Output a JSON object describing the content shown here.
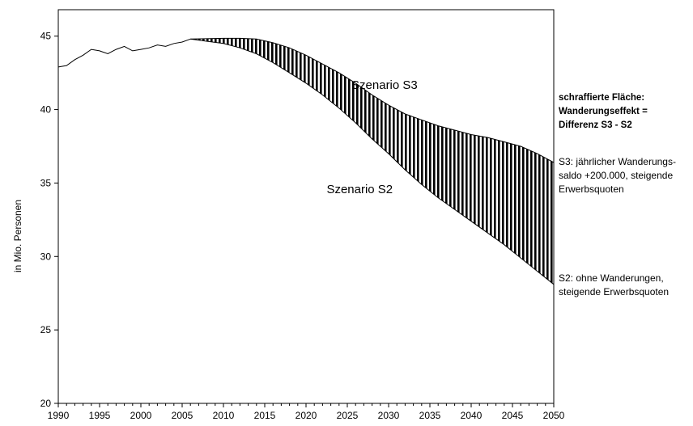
{
  "chart_data": {
    "type": "area",
    "xlabel": "",
    "ylabel": "in Mio. Personen",
    "xlim": [
      1990,
      2050
    ],
    "ylim": [
      20,
      46.8
    ],
    "x_ticks": [
      1990,
      1995,
      2000,
      2005,
      2010,
      2015,
      2020,
      2025,
      2030,
      2035,
      2040,
      2045,
      2050
    ],
    "y_ticks": [
      20,
      25,
      30,
      35,
      40,
      45
    ],
    "grid": false,
    "history": {
      "x": [
        1990,
        1991,
        1992,
        1993,
        1994,
        1995,
        1996,
        1997,
        1998,
        1999,
        2000,
        2001,
        2002,
        2003,
        2004,
        2005,
        2006
      ],
      "y": [
        42.9,
        43.0,
        43.4,
        43.7,
        44.1,
        44.0,
        43.8,
        44.1,
        44.3,
        44.0,
        44.1,
        44.2,
        44.4,
        44.3,
        44.5,
        44.6,
        44.8
      ]
    },
    "series": [
      {
        "name": "Szenario S3",
        "x": [
          2006,
          2010,
          2012,
          2014,
          2016,
          2018,
          2020,
          2022,
          2024,
          2026,
          2028,
          2030,
          2032,
          2034,
          2036,
          2038,
          2040,
          2042,
          2044,
          2046,
          2048,
          2050
        ],
        "y": [
          44.8,
          44.85,
          44.85,
          44.8,
          44.55,
          44.2,
          43.7,
          43.1,
          42.5,
          41.8,
          41.0,
          40.3,
          39.7,
          39.3,
          38.9,
          38.6,
          38.3,
          38.1,
          37.8,
          37.5,
          37.0,
          36.4
        ]
      },
      {
        "name": "Szenario S2",
        "x": [
          2006,
          2010,
          2012,
          2014,
          2016,
          2018,
          2020,
          2022,
          2024,
          2026,
          2028,
          2030,
          2032,
          2034,
          2036,
          2038,
          2040,
          2042,
          2044,
          2046,
          2048,
          2050
        ],
        "y": [
          44.8,
          44.5,
          44.2,
          43.8,
          43.2,
          42.5,
          41.8,
          41.0,
          40.1,
          39.1,
          38.0,
          37.0,
          35.9,
          34.9,
          34.0,
          33.2,
          32.4,
          31.6,
          30.8,
          29.9,
          29.0,
          28.1
        ]
      }
    ],
    "annotations": [
      {
        "text": "Szenario S3",
        "x": 2029.5,
        "y": 41.4
      },
      {
        "text": "Szenario S2",
        "x": 2026.5,
        "y": 34.3
      }
    ],
    "legend_notes": {
      "title": "schraffierte Fläche:\nWanderungseffekt =\nDifferenz S3 - S2",
      "s3": "S3: jährlicher Wanderungs-\nsaldo +200.000, steigende\nErwerbsquoten",
      "s2": "S2: ohne Wanderungen,\nsteigende Erwerbsquoten"
    },
    "colors": {
      "line": "#000000",
      "hatch": "#000000",
      "background": "#ffffff"
    }
  }
}
